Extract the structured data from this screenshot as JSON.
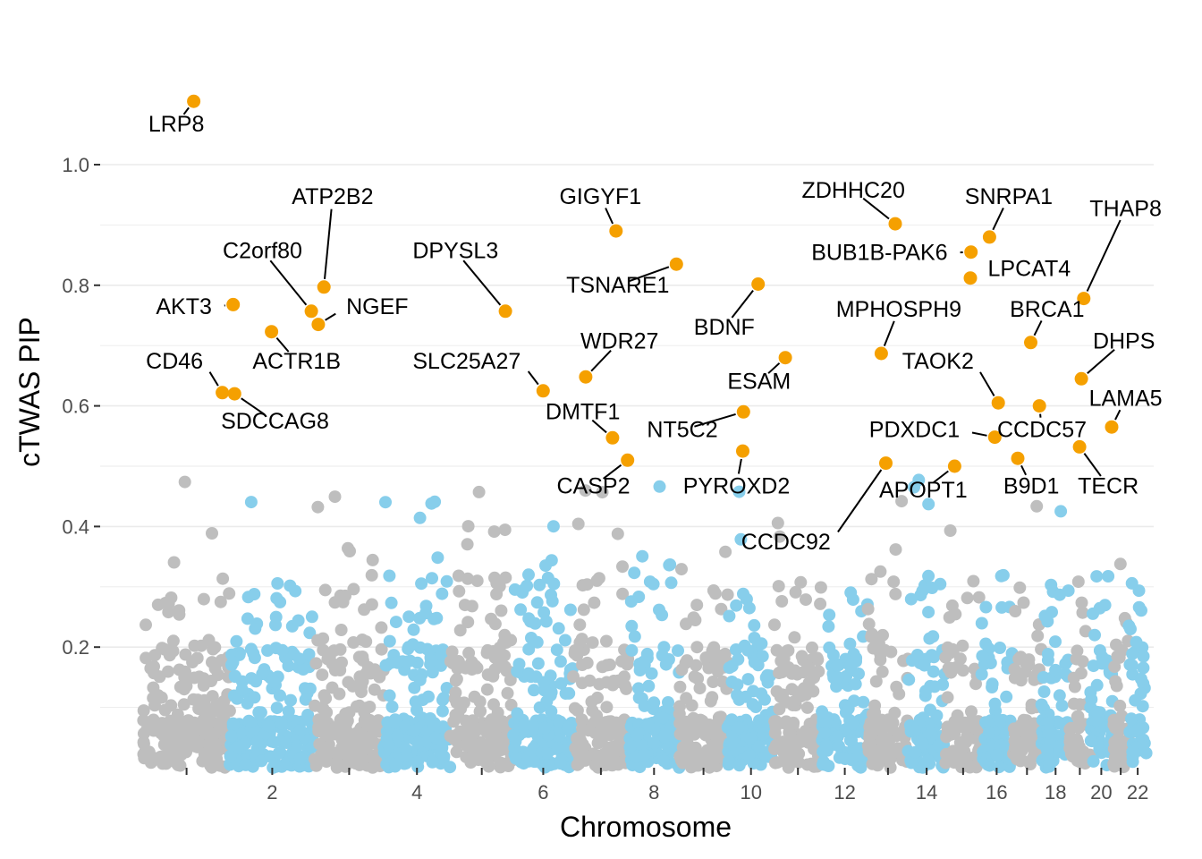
{
  "chart_data": {
    "type": "scatter",
    "subtype": "manhattan",
    "title": "",
    "xlabel": "Chromosome",
    "ylabel": "cTWAS PIP",
    "ylim": [
      0,
      1.1
    ],
    "y_ticks": [
      "0.2",
      "0.4",
      "0.6",
      "0.8",
      "1.0"
    ],
    "y_tick_values": [
      0.2,
      0.4,
      0.6,
      0.8,
      1.0
    ],
    "grid": true,
    "legend": "none",
    "colors": {
      "odd_chromosome": "#bebebe",
      "even_chromosome": "#87ceeb",
      "highlight": "#f5a000",
      "grid": "#ebebeb",
      "tick": "#333333"
    },
    "chromosomes": [
      {
        "chr": 1,
        "start": 0.0,
        "end": 248.9
      },
      {
        "chr": 2,
        "start": 248.9,
        "end": 491.1
      },
      {
        "chr": 3,
        "start": 491.1,
        "end": 689.4
      },
      {
        "chr": 4,
        "start": 689.4,
        "end": 879.6
      },
      {
        "chr": 5,
        "start": 879.6,
        "end": 1061.1
      },
      {
        "chr": 6,
        "start": 1061.1,
        "end": 1231.9
      },
      {
        "chr": 7,
        "start": 1231.9,
        "end": 1391.2
      },
      {
        "chr": 8,
        "start": 1391.2,
        "end": 1536.4
      },
      {
        "chr": 9,
        "start": 1536.4,
        "end": 1674.8
      },
      {
        "chr": 10,
        "start": 1674.8,
        "end": 1808.6
      },
      {
        "chr": 11,
        "start": 1808.6,
        "end": 1943.7
      },
      {
        "chr": 12,
        "start": 1943.7,
        "end": 2077.0
      },
      {
        "chr": 13,
        "start": 2077.0,
        "end": 2191.4
      },
      {
        "chr": 14,
        "start": 2191.4,
        "end": 2298.4
      },
      {
        "chr": 15,
        "start": 2298.4,
        "end": 2400.4
      },
      {
        "chr": 16,
        "start": 2400.4,
        "end": 2490.7
      },
      {
        "chr": 17,
        "start": 2490.7,
        "end": 2574.0
      },
      {
        "chr": 18,
        "start": 2574.0,
        "end": 2654.4
      },
      {
        "chr": 19,
        "start": 2654.4,
        "end": 2713.0
      },
      {
        "chr": 20,
        "start": 2713.0,
        "end": 2777.4
      },
      {
        "chr": 21,
        "start": 2777.4,
        "end": 2824.1
      },
      {
        "chr": 22,
        "start": 2824.1,
        "end": 2874.9
      }
    ],
    "x_tick_labels": [
      {
        "chr": 2,
        "label": "2"
      },
      {
        "chr": 4,
        "label": "4"
      },
      {
        "chr": 6,
        "label": "6"
      },
      {
        "chr": 8,
        "label": "8"
      },
      {
        "chr": 10,
        "label": "10"
      },
      {
        "chr": 12,
        "label": "12"
      },
      {
        "chr": 14,
        "label": "14"
      },
      {
        "chr": 16,
        "label": "16"
      },
      {
        "chr": 18,
        "label": "18"
      },
      {
        "chr": 20,
        "label": "20"
      },
      {
        "chr": 22,
        "label": "22"
      }
    ],
    "background_points": {
      "description": "thousands of gene PIPs per chromosome, mostly below 0.3, scattered up to ~0.5",
      "count_per_chromosome": 170,
      "random_seed": 12345
    },
    "highlighted_genes": [
      {
        "gene": "LRP8",
        "x": 145,
        "pip": 1.105,
        "label_x": 95,
        "label_y": 1.055,
        "anchor": "middle"
      },
      {
        "gene": "ATP2B2",
        "x": 518,
        "pip": 0.797,
        "label_x": 543,
        "label_y": 0.935,
        "anchor": "middle"
      },
      {
        "gene": "C2orf80",
        "x": 482,
        "pip": 0.757,
        "label_x": 342,
        "label_y": 0.845,
        "anchor": "middle"
      },
      {
        "gene": "NGEF",
        "x": 502,
        "pip": 0.735,
        "label_x": 582,
        "label_y": 0.752,
        "anchor": "start"
      },
      {
        "gene": "AKT3",
        "x": 258,
        "pip": 0.768,
        "label_x": 197,
        "label_y": 0.752,
        "anchor": "end"
      },
      {
        "gene": "ACTR1B",
        "x": 368,
        "pip": 0.723,
        "label_x": 440,
        "label_y": 0.662,
        "anchor": "middle"
      },
      {
        "gene": "CD46",
        "x": 227,
        "pip": 0.622,
        "label_x": 172,
        "label_y": 0.662,
        "anchor": "end"
      },
      {
        "gene": "SDCCAG8",
        "x": 262,
        "pip": 0.62,
        "label_x": 378,
        "label_y": 0.562,
        "anchor": "middle"
      },
      {
        "gene": "DPYSL3",
        "x": 1038,
        "pip": 0.757,
        "label_x": 895,
        "label_y": 0.845,
        "anchor": "middle"
      },
      {
        "gene": "SLC25A27",
        "x": 1146,
        "pip": 0.625,
        "label_x": 1082,
        "label_y": 0.662,
        "anchor": "end"
      },
      {
        "gene": "GIGYF1",
        "x": 1355,
        "pip": 0.89,
        "label_x": 1310,
        "label_y": 0.935,
        "anchor": "middle"
      },
      {
        "gene": "TSNARE1",
        "x": 1528,
        "pip": 0.835,
        "label_x": 1360,
        "label_y": 0.788,
        "anchor": "middle"
      },
      {
        "gene": "WDR27",
        "x": 1268,
        "pip": 0.648,
        "label_x": 1365,
        "label_y": 0.695,
        "anchor": "middle"
      },
      {
        "gene": "DMTF1",
        "x": 1345,
        "pip": 0.547,
        "label_x": 1260,
        "label_y": 0.578,
        "anchor": "middle"
      },
      {
        "gene": "CASP2",
        "x": 1388,
        "pip": 0.51,
        "label_x": 1290,
        "label_y": 0.455,
        "anchor": "middle"
      },
      {
        "gene": "BDNF",
        "x": 1762,
        "pip": 0.802,
        "label_x": 1665,
        "label_y": 0.718,
        "anchor": "middle"
      },
      {
        "gene": "ESAM",
        "x": 1840,
        "pip": 0.68,
        "label_x": 1765,
        "label_y": 0.628,
        "anchor": "middle"
      },
      {
        "gene": "NT5C2",
        "x": 1720,
        "pip": 0.59,
        "label_x": 1545,
        "label_y": 0.548,
        "anchor": "middle"
      },
      {
        "gene": "PYROXD2",
        "x": 1718,
        "pip": 0.525,
        "label_x": 1700,
        "label_y": 0.455,
        "anchor": "middle"
      },
      {
        "gene": "ZDHHC20",
        "x": 2155,
        "pip": 0.902,
        "label_x": 2035,
        "label_y": 0.945,
        "anchor": "middle"
      },
      {
        "gene": "BUB1B-PAK6",
        "x": 2372,
        "pip": 0.855,
        "label_x": 2305,
        "label_y": 0.842,
        "anchor": "end"
      },
      {
        "gene": "SNRPA1",
        "x": 2425,
        "pip": 0.88,
        "label_x": 2480,
        "label_y": 0.935,
        "anchor": "middle"
      },
      {
        "gene": "LPCAT4",
        "x": 2370,
        "pip": 0.812,
        "label_x": 2420,
        "label_y": 0.815,
        "anchor": "start"
      },
      {
        "gene": "MPHOSPH9",
        "x": 2115,
        "pip": 0.687,
        "label_x": 2165,
        "label_y": 0.748,
        "anchor": "middle"
      },
      {
        "gene": "TAOK2",
        "x": 2450,
        "pip": 0.605,
        "label_x": 2380,
        "label_y": 0.662,
        "anchor": "end"
      },
      {
        "gene": "PDXDC1",
        "x": 2440,
        "pip": 0.548,
        "label_x": 2340,
        "label_y": 0.548,
        "anchor": "end"
      },
      {
        "gene": "CCDC92",
        "x": 2128,
        "pip": 0.505,
        "label_x": 1970,
        "label_y": 0.362,
        "anchor": "end"
      },
      {
        "gene": "APOPT1",
        "x": 2325,
        "pip": 0.5,
        "label_x": 2235,
        "label_y": 0.448,
        "anchor": "middle"
      },
      {
        "gene": "BRCA1",
        "x": 2543,
        "pip": 0.705,
        "label_x": 2590,
        "label_y": 0.748,
        "anchor": "middle"
      },
      {
        "gene": "CCDC57",
        "x": 2568,
        "pip": 0.6,
        "label_x": 2575,
        "label_y": 0.548,
        "anchor": "middle"
      },
      {
        "gene": "B9D1",
        "x": 2506,
        "pip": 0.513,
        "label_x": 2545,
        "label_y": 0.455,
        "anchor": "middle"
      },
      {
        "gene": "THAP8",
        "x": 2695,
        "pip": 0.778,
        "label_x": 2815,
        "label_y": 0.915,
        "anchor": "middle"
      },
      {
        "gene": "DHPS",
        "x": 2688,
        "pip": 0.645,
        "label_x": 2810,
        "label_y": 0.695,
        "anchor": "middle"
      },
      {
        "gene": "LAMA5",
        "x": 2775,
        "pip": 0.565,
        "label_x": 2815,
        "label_y": 0.6,
        "anchor": "middle"
      },
      {
        "gene": "TECR",
        "x": 2683,
        "pip": 0.532,
        "label_x": 2765,
        "label_y": 0.455,
        "anchor": "middle"
      }
    ]
  }
}
